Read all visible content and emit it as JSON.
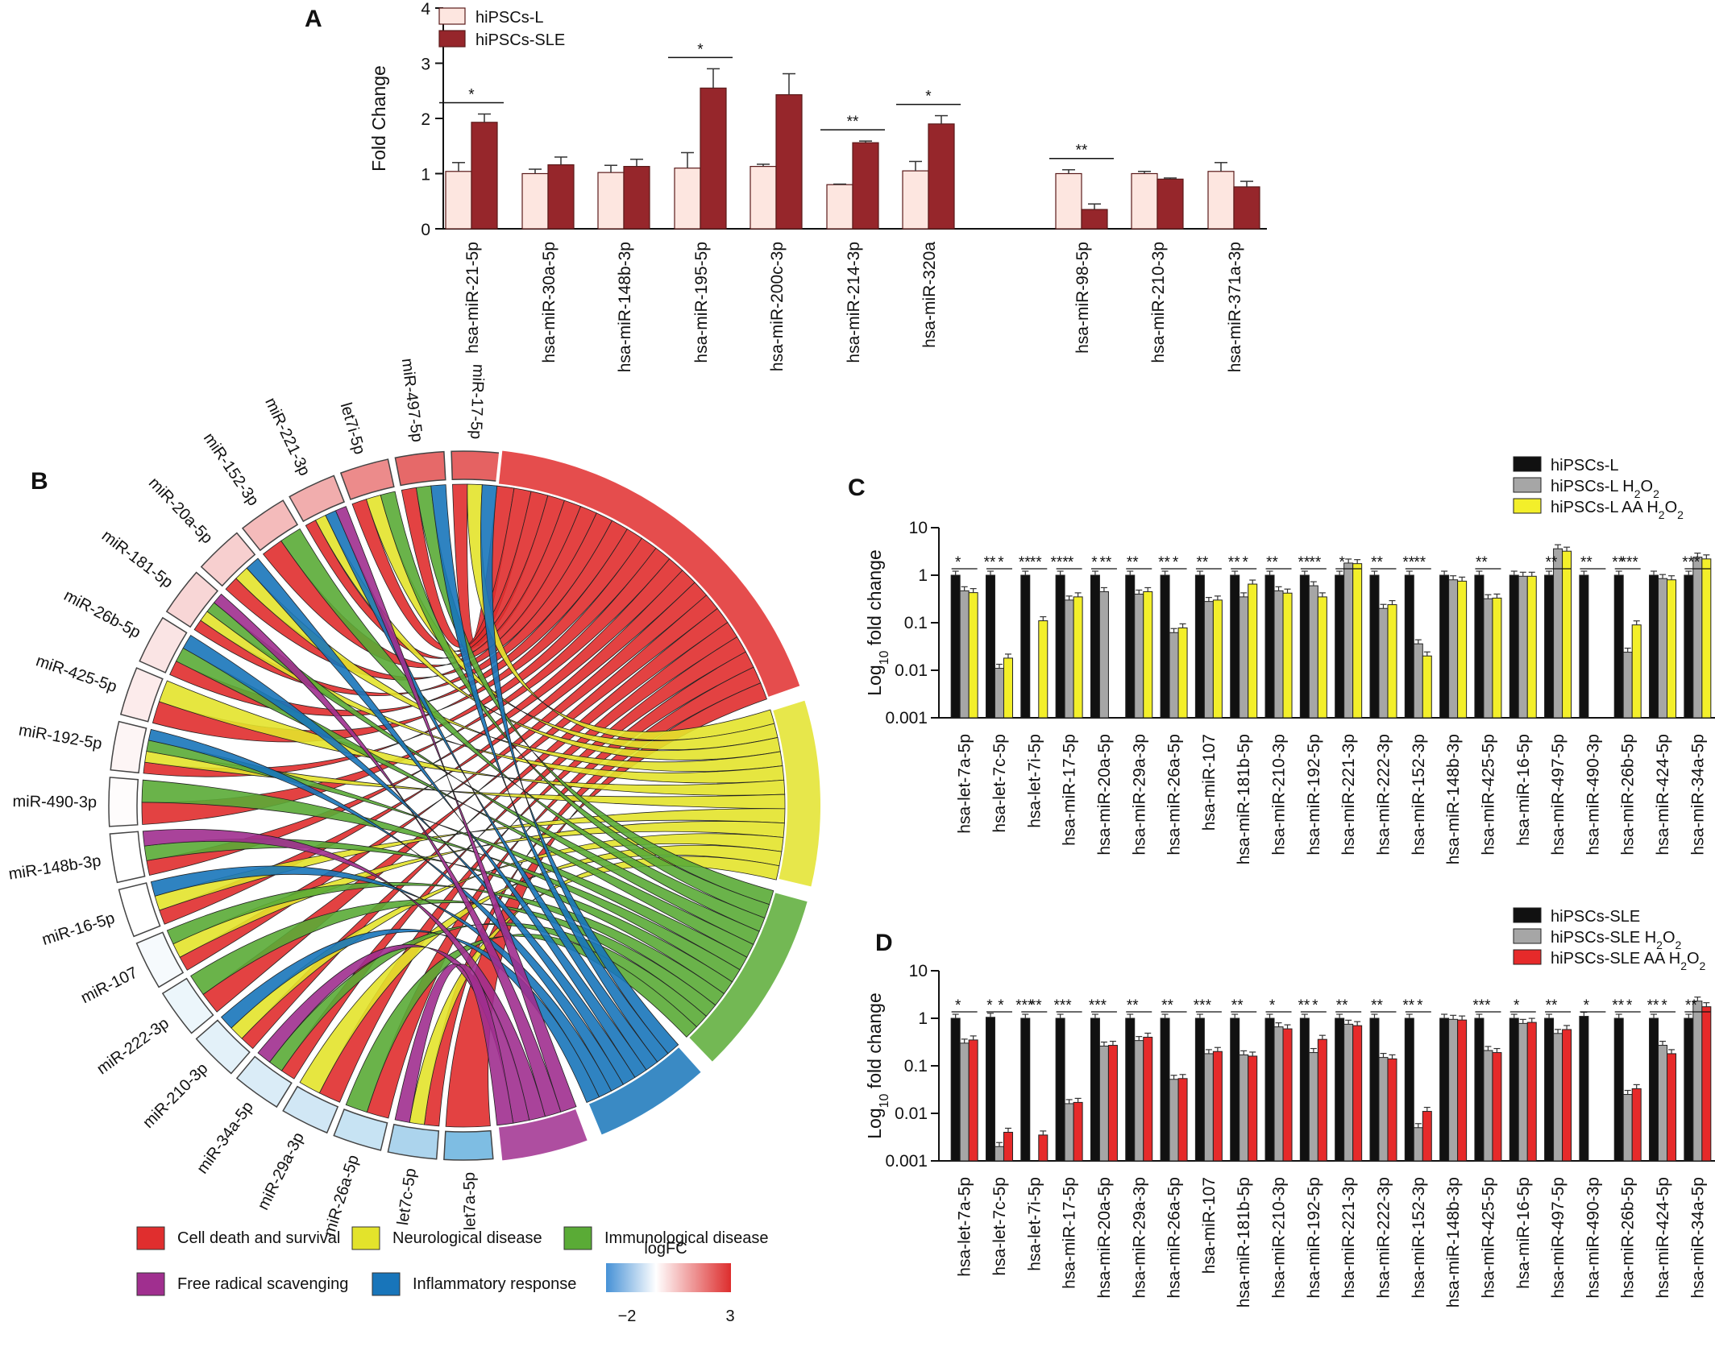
{
  "chart_data": [
    {
      "panel": "A",
      "type": "bar",
      "ylabel": "Fold Change",
      "ylim": [
        0,
        4
      ],
      "yticks": [
        "0",
        "1",
        "2",
        "3",
        "4"
      ],
      "categories": [
        "hsa-miR-21-5p",
        "hsa-miR-30a-5p",
        "hsa-miR-148b-3p",
        "hsa-miR-195-5p",
        "hsa-miR-200c-3p",
        "hsa-miR-214-3p",
        "hsa-miR-320a",
        "hsa-miR-98-5p",
        "hsa-miR-210-3p",
        "hsa-miR-371a-3p"
      ],
      "series": [
        {
          "name": "hiPSCs-L",
          "color": "#fde6e0",
          "values": [
            1.04,
            1.0,
            1.02,
            1.1,
            1.13,
            0.8,
            1.05,
            1.0,
            1.0,
            1.04
          ],
          "errors": [
            0.16,
            0.08,
            0.13,
            0.28,
            0.04,
            0.01,
            0.17,
            0.07,
            0.04,
            0.16
          ]
        },
        {
          "name": "hiPSCs-SLE",
          "color": "#96262b",
          "values": [
            1.93,
            1.16,
            1.13,
            2.55,
            2.43,
            1.56,
            1.9,
            0.35,
            0.9,
            0.76
          ],
          "errors": [
            0.15,
            0.14,
            0.13,
            0.35,
            0.38,
            0.03,
            0.15,
            0.1,
            0.02,
            0.1
          ]
        }
      ],
      "significance": [
        "*",
        "",
        "",
        "*",
        "",
        "**",
        "*",
        "**",
        "",
        ""
      ],
      "legend": "top-left",
      "grid": false
    },
    {
      "panel": "B",
      "type": "chord",
      "mirnas": [
        "miR-17-5p",
        "miR-497-5p",
        "let7i-5p",
        "miR-221-3p",
        "miR-152-3p",
        "miR-20a-5p",
        "miR-181-5p",
        "miR-26b-5p",
        "miR-425-5p",
        "miR-192-5p",
        "miR-490-3p",
        "miR-148b-3p",
        "miR-16-5p",
        "miR-107",
        "miR-222-3p",
        "miR-210-3p",
        "miR-34a-5p",
        "miR-29a-3p",
        "miR-26a-5p",
        "let7c-5p",
        "let7a-5p"
      ],
      "logfc": [
        2.3,
        2.2,
        1.7,
        1.2,
        1.0,
        0.7,
        0.6,
        0.4,
        0.3,
        0.15,
        0.05,
        0.0,
        0.0,
        -0.1,
        -0.2,
        -0.3,
        -0.4,
        -0.5,
        -0.6,
        -0.9,
        -1.4
      ],
      "categories": [
        {
          "name": "Cell death and survival",
          "color": "#e02e2e",
          "size": 40
        },
        {
          "name": "Neurological disease",
          "color": "#e3e32b",
          "size": 19
        },
        {
          "name": "Immunological disease",
          "color": "#5aab36",
          "size": 19
        },
        {
          "name": "Inflammatory response",
          "color": "#1875ba",
          "size": 12
        },
        {
          "name": "Free radical scavenging",
          "color": "#a02f8f",
          "size": 9
        }
      ],
      "colorbar": {
        "title": "logFC",
        "min_label": "−2",
        "max_label": "3",
        "min": -2,
        "max": 3
      }
    },
    {
      "panel": "C",
      "type": "bar",
      "scale": "log",
      "ylabel": "Log10 fold change",
      "ylim": [
        0.001,
        10
      ],
      "yticks": [
        "0.001",
        "0.01",
        "0.1",
        "1",
        "10"
      ],
      "categories": [
        "hsa-let-7a-5p",
        "hsa-let-7c-5p",
        "hsa-let-7i-5p",
        "hsa-miR-17-5p",
        "hsa-miR-20a-5p",
        "hsa-miR-29a-3p",
        "hsa-miR-26a-5p",
        "hsa-miR-107",
        "hsa-miR-181b-5p",
        "hsa-miR-210-3p",
        "hsa-miR-192-5p",
        "hsa-miR-221-3p",
        "hsa-miR-222-3p",
        "hsa-miR-152-3p",
        "hsa-miR-148b-3p",
        "hsa-miR-425-5p",
        "hsa-miR-16-5p",
        "hsa-miR-497-5p",
        "hsa-miR-490-3p",
        "hsa-miR-26b-5p",
        "hsa-miR-424-5p",
        "hsa-miR-34a-5p"
      ],
      "series": [
        {
          "name": "hiPSCs-L",
          "color": "#111111",
          "values": [
            1,
            1,
            1,
            1,
            1,
            1,
            1,
            1,
            1,
            1,
            1,
            1,
            1,
            1,
            1,
            1,
            1,
            1,
            1,
            1,
            1,
            1
          ]
        },
        {
          "name": "hiPSCs-L H2O2",
          "color": "#a6a6a6",
          "values": [
            0.47,
            0.011,
            0.0,
            0.3,
            0.45,
            0.4,
            0.062,
            0.28,
            0.35,
            0.47,
            0.6,
            1.8,
            0.2,
            0.036,
            0.8,
            0.32,
            0.95,
            3.6,
            0.0,
            0.024,
            0.85,
            2.4
          ]
        },
        {
          "name": "hiPSCs-L AA H2O2",
          "color": "#f3ef2a",
          "values": [
            0.43,
            0.018,
            0.11,
            0.35,
            0.0,
            0.45,
            0.078,
            0.3,
            0.65,
            0.42,
            0.35,
            1.75,
            0.24,
            0.02,
            0.75,
            0.33,
            0.95,
            3.2,
            0.0,
            0.09,
            0.8,
            2.2
          ]
        }
      ],
      "significance": [
        [
          "*"
        ],
        [
          "**",
          "*"
        ],
        [
          "**",
          "**"
        ],
        [
          "***",
          "*"
        ],
        [
          "*",
          "**"
        ],
        [
          "**"
        ],
        [
          "**",
          "*"
        ],
        [
          "**"
        ],
        [
          "**",
          "*"
        ],
        [
          "**"
        ],
        [
          "**",
          "**"
        ],
        [
          "*"
        ],
        [
          "**"
        ],
        [
          "**",
          "**"
        ],
        [],
        [
          "**"
        ],
        [],
        [
          "**"
        ],
        [
          "**"
        ],
        [
          "**",
          "***"
        ],
        [],
        [
          "***"
        ]
      ],
      "legend": "top-right"
    },
    {
      "panel": "D",
      "type": "bar",
      "scale": "log",
      "ylabel": "Log10 fold change",
      "ylim": [
        0.001,
        10
      ],
      "yticks": [
        "0.001",
        "0.01",
        "0.1",
        "1",
        "10"
      ],
      "categories": [
        "hsa-let-7a-5p",
        "hsa-let-7c-5p",
        "hsa-let-7i-5p",
        "hsa-miR-17-5p",
        "hsa-miR-20a-5p",
        "hsa-miR-29a-3p",
        "hsa-miR-26a-5p",
        "hsa-miR-107",
        "hsa-miR-181b-5p",
        "hsa-miR-210-3p",
        "hsa-miR-192-5p",
        "hsa-miR-221-3p",
        "hsa-miR-222-3p",
        "hsa-miR-152-3p",
        "hsa-miR-148b-3p",
        "hsa-miR-425-5p",
        "hsa-miR-16-5p",
        "hsa-miR-497-5p",
        "hsa-miR-490-3p",
        "hsa-miR-26b-5p",
        "hsa-miR-424-5p",
        "hsa-miR-34a-5p"
      ],
      "series": [
        {
          "name": "hiPSCs-SLE",
          "color": "#111111",
          "values": [
            1,
            1.05,
            1,
            1,
            1,
            1,
            1,
            1,
            1,
            1,
            1,
            1,
            1,
            1,
            1,
            1,
            1,
            1,
            1.1,
            1,
            1,
            1
          ]
        },
        {
          "name": "hiPSCs-SLE H2O2",
          "color": "#a6a6a6",
          "values": [
            0.3,
            0.002,
            0.0,
            0.016,
            0.26,
            0.34,
            0.052,
            0.18,
            0.17,
            0.66,
            0.19,
            0.75,
            0.15,
            0.005,
            0.95,
            0.21,
            0.78,
            0.48,
            0.0,
            0.025,
            0.27,
            2.3
          ]
        },
        {
          "name": "hiPSCs-SLE AA H2O2",
          "color": "#e62a2a",
          "values": [
            0.35,
            0.004,
            0.0035,
            0.017,
            0.27,
            0.4,
            0.054,
            0.2,
            0.16,
            0.6,
            0.36,
            0.7,
            0.14,
            0.011,
            0.92,
            0.19,
            0.82,
            0.58,
            0.0,
            0.033,
            0.18,
            1.75
          ]
        }
      ],
      "significance": [
        [
          "*"
        ],
        [
          "*",
          "*"
        ],
        [
          "***",
          "**"
        ],
        [
          "***"
        ],
        [
          "***"
        ],
        [
          "**"
        ],
        [
          "**"
        ],
        [
          "***"
        ],
        [
          "**"
        ],
        [
          "*"
        ],
        [
          "**",
          "*"
        ],
        [
          "**"
        ],
        [
          "**"
        ],
        [
          "**",
          "*"
        ],
        [],
        [
          "***"
        ],
        [
          "*"
        ],
        [
          "**"
        ],
        [
          "*"
        ],
        [
          "**",
          "*"
        ],
        [
          "**",
          "*"
        ],
        [
          "**"
        ]
      ],
      "legend": "top-right"
    }
  ],
  "panels": {
    "a": {
      "letter": "A",
      "ylabel": "Fold Change",
      "legend": [
        "hiPSCs-L",
        "hiPSCs-SLE"
      ]
    },
    "b": {
      "letter": "B",
      "legend": [
        "Cell death and survival",
        "Neurological disease",
        "Immunological disease",
        "Free radical scavenging",
        "Inflammatory response"
      ],
      "colorbar_title": "logFC",
      "colorbar_min": "−2",
      "colorbar_max": "3"
    },
    "c": {
      "letter": "C",
      "ylabel_pre": "Log",
      "ylabel_sub": "10",
      "ylabel_post": " fold change",
      "legend": [
        {
          "text": "hiPSCs-L",
          "sub": "",
          "tail": ""
        },
        {
          "text": "hiPSCs-L H",
          "sub": "2",
          "tail": "O",
          "sub2": "2"
        },
        {
          "text": "hiPSCs-L AA H",
          "sub": "2",
          "tail": "O",
          "sub2": "2"
        }
      ]
    },
    "d": {
      "letter": "D",
      "ylabel_pre": "Log",
      "ylabel_sub": "10",
      "ylabel_post": " fold change",
      "legend": [
        {
          "text": "hiPSCs-SLE",
          "sub": "",
          "tail": ""
        },
        {
          "text": "hiPSCs-SLE H",
          "sub": "2",
          "tail": "O",
          "sub2": "2"
        },
        {
          "text": "hiPSCs-SLE AA H",
          "sub": "2",
          "tail": "O",
          "sub2": "2"
        }
      ]
    }
  }
}
